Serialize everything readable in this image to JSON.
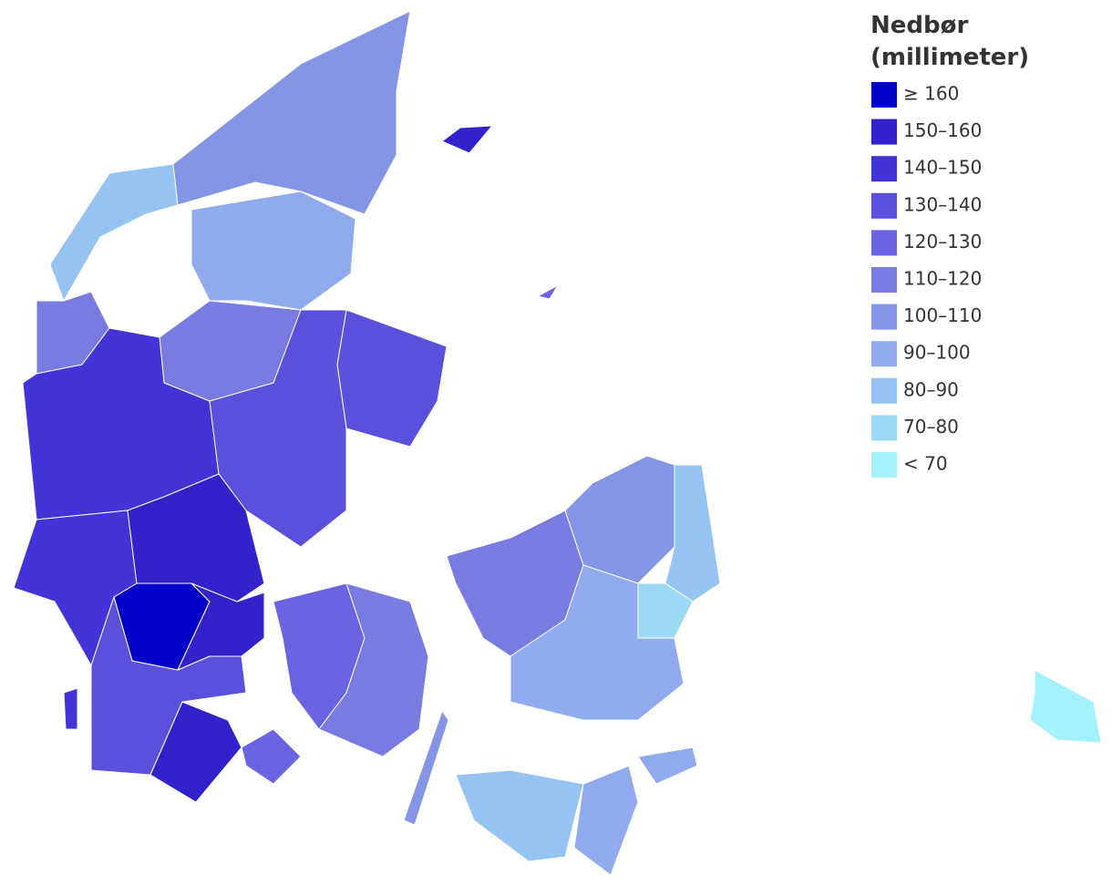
{
  "legend": {
    "title": [
      "Nedbør",
      "(millimeter)"
    ],
    "items": [
      {
        "label": "≥ 160",
        "color": "#0000c8"
      },
      {
        "label": "150–160",
        "color": "#3322cc"
      },
      {
        "label": "140–150",
        "color": "#4433d6"
      },
      {
        "label": "130–140",
        "color": "#5a50dc"
      },
      {
        "label": "120–130",
        "color": "#6b63df"
      },
      {
        "label": "110–120",
        "color": "#7a7be0"
      },
      {
        "label": "100–110",
        "color": "#8595e6"
      },
      {
        "label": "90–100",
        "color": "#8fabee"
      },
      {
        "label": "80–90",
        "color": "#95c3f2"
      },
      {
        "label": "70–80",
        "color": "#9adaf5"
      },
      {
        "label": "< 70",
        "color": "#a3f1fa"
      }
    ]
  }
}
